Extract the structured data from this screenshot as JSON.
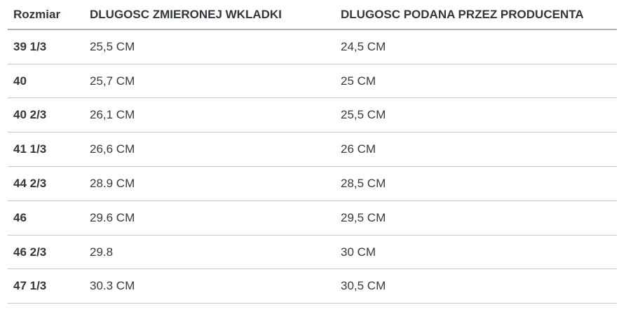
{
  "chart_data": {
    "type": "table",
    "title": "",
    "columns": [
      "Rozmiar",
      "DLUGOSC ZMIERONEJ WKLADKI",
      "DLUGOSC PODANA PRZEZ PRODUCENTA"
    ],
    "rows": [
      {
        "size": "39 1/3",
        "measured": "25,5 CM",
        "manufacturer": "24,5 CM"
      },
      {
        "size": "40",
        "measured": "25,7 CM",
        "manufacturer": "25 CM"
      },
      {
        "size": "40 2/3",
        "measured": "26,1 CM",
        "manufacturer": "25,5 CM"
      },
      {
        "size": "41 1/3",
        "measured": "26,6 CM",
        "manufacturer": "26 CM"
      },
      {
        "size": "44 2/3",
        "measured": "28.9 CM",
        "manufacturer": "28,5 CM"
      },
      {
        "size": "46",
        "measured": "29.6 CM",
        "manufacturer": "29,5 CM"
      },
      {
        "size": "46 2/3",
        "measured": "29.8",
        "manufacturer": "30 CM"
      },
      {
        "size": "47 1/3",
        "measured": "30.3 CM",
        "manufacturer": "30,5 CM"
      }
    ]
  },
  "colors": {
    "text": "#333333",
    "header_text": "#32373c",
    "header_border": "#b0b0b0",
    "row_border": "#c9c9c9",
    "background": "#ffffff"
  }
}
